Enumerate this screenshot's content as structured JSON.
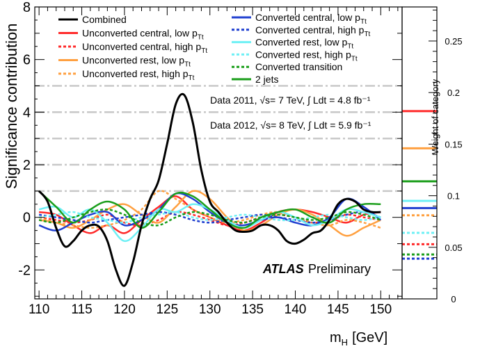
{
  "chart_data": {
    "type": "line",
    "title": "",
    "xlabel": "m",
    "xlabel_sub": "H",
    "xlabel_unit": "[GeV]",
    "ylabel": "Significance contribution",
    "y2label": "Weight of category",
    "xlim": [
      109.5,
      152.5
    ],
    "ylim": [
      -3.1,
      8
    ],
    "y2lim": [
      0,
      0.283
    ],
    "xticks": [
      "110",
      "115",
      "120",
      "125",
      "130",
      "135",
      "140",
      "145",
      "150"
    ],
    "xtick_values": [
      110,
      115,
      120,
      125,
      130,
      135,
      140,
      145,
      150
    ],
    "yticks": [
      "-2",
      "0",
      "2",
      "4",
      "6",
      "8"
    ],
    "ytick_values": [
      -2,
      0,
      2,
      4,
      6,
      8
    ],
    "y2ticks": [
      "0",
      "0.05",
      "0.1",
      "0.15",
      "0.2",
      "0.25"
    ],
    "y2tick_values": [
      0,
      0.05,
      0.1,
      0.15,
      0.2,
      0.25
    ],
    "reference_lines": [
      1,
      2,
      3,
      4,
      5
    ],
    "annotations": {
      "atlas": "ATLAS",
      "preliminary": "Preliminary",
      "data2011": "Data 2011, √s= 7 TeV, ∫ Ldt = 4.8 fb⁻¹",
      "data2012": "Data 2012, √s= 8 TeV, ∫ Ldt = 5.9 fb⁻¹"
    },
    "series": [
      {
        "name": "Combined",
        "color": "#000000",
        "dash": "solid",
        "weight": null,
        "x": [
          110,
          111,
          112,
          113,
          114,
          115,
          116,
          117,
          118,
          119,
          120,
          121,
          122,
          123,
          124,
          125,
          126,
          127,
          128,
          129,
          130,
          131,
          132,
          133,
          134,
          135,
          136,
          137,
          138,
          139,
          140,
          141,
          142,
          143,
          144,
          145,
          146,
          147,
          148,
          149,
          150
        ],
        "y": [
          1.0,
          0.6,
          -0.4,
          -1.1,
          -0.9,
          -0.5,
          -0.3,
          -0.35,
          -0.9,
          -2.0,
          -2.6,
          -1.7,
          -0.3,
          0.7,
          1.4,
          2.8,
          4.3,
          4.65,
          3.6,
          1.8,
          0.6,
          0.2,
          -0.2,
          -0.5,
          -0.55,
          -0.5,
          -0.3,
          -0.3,
          -0.5,
          -0.9,
          -1.0,
          -0.85,
          -0.6,
          -0.5,
          -0.1,
          0.5,
          0.7,
          0.6,
          0.3,
          0.2,
          0.2
        ]
      },
      {
        "name": "Unconverted central, low pTt",
        "color": "#ff2a2a",
        "dash": "solid",
        "weight": 0.182,
        "x": [
          110,
          112,
          114,
          116,
          118,
          120,
          122,
          124,
          126,
          128,
          130,
          132,
          134,
          136,
          138,
          140,
          142,
          144,
          146,
          148,
          150
        ],
        "y": [
          0.2,
          0.1,
          -0.3,
          -0.6,
          -0.3,
          -0.6,
          -0.1,
          0.4,
          0.8,
          0.3,
          0.0,
          -0.3,
          -0.5,
          -0.2,
          0.2,
          0.3,
          0.2,
          0.0,
          -0.2,
          0.1,
          0.2
        ]
      },
      {
        "name": "Unconverted central, high pTt",
        "color": "#ff2a2a",
        "dash": "dotted",
        "weight": 0.053,
        "x": [
          110,
          112,
          114,
          116,
          118,
          120,
          122,
          124,
          126,
          128,
          130,
          132,
          134,
          136,
          138,
          140,
          142,
          144,
          146,
          148,
          150
        ],
        "y": [
          0.0,
          -0.1,
          -0.2,
          -0.1,
          0.1,
          -0.2,
          -0.3,
          -0.1,
          0.2,
          0.1,
          -0.1,
          -0.3,
          -0.2,
          0.0,
          0.1,
          0.0,
          -0.2,
          -0.1,
          0.1,
          0.0,
          -0.1
        ]
      },
      {
        "name": "Unconverted rest, low pTt",
        "color": "#ffa040",
        "dash": "solid",
        "weight": 0.146,
        "x": [
          110,
          112,
          114,
          116,
          118,
          120,
          122,
          124,
          126,
          128,
          130,
          132,
          134,
          136,
          138,
          140,
          142,
          144,
          146,
          148,
          150
        ],
        "y": [
          -0.1,
          -0.2,
          -0.4,
          -0.1,
          0.3,
          0.5,
          0.1,
          -0.2,
          0.4,
          1.0,
          0.7,
          0.0,
          -0.5,
          -0.3,
          0.1,
          0.3,
          0.1,
          -0.3,
          -0.7,
          -0.4,
          -0.1
        ]
      },
      {
        "name": "Unconverted rest, high pTt",
        "color": "#ffa040",
        "dash": "dotted",
        "weight": 0.081,
        "x": [
          110,
          112,
          114,
          116,
          118,
          120,
          122,
          124,
          126,
          128,
          130,
          132,
          134,
          136,
          138,
          140,
          142,
          144,
          146,
          148,
          150
        ],
        "y": [
          0.0,
          -0.2,
          -0.3,
          -0.4,
          -0.3,
          -0.1,
          0.3,
          1.0,
          0.7,
          0.3,
          0.0,
          -0.2,
          -0.1,
          0.1,
          0.2,
          0.0,
          -0.2,
          -0.3,
          -0.1,
          -0.2,
          -0.4
        ]
      },
      {
        "name": "Converted central, low pTt",
        "color": "#1f3fd0",
        "dash": "solid",
        "weight": 0.088,
        "x": [
          110,
          112,
          114,
          116,
          118,
          120,
          122,
          124,
          126,
          128,
          130,
          132,
          134,
          136,
          138,
          140,
          142,
          144,
          146,
          148,
          150
        ],
        "y": [
          -0.3,
          -0.5,
          -0.2,
          0.1,
          0.2,
          -0.3,
          -0.1,
          0.3,
          0.9,
          0.7,
          0.2,
          -0.2,
          -0.3,
          -0.1,
          0.0,
          -0.2,
          -0.3,
          0.0,
          0.7,
          0.4,
          -0.1
        ]
      },
      {
        "name": "Converted central, high pTt",
        "color": "#1f3fd0",
        "dash": "dotted",
        "weight": 0.039,
        "x": [
          110,
          112,
          114,
          116,
          118,
          120,
          122,
          124,
          126,
          128,
          130,
          132,
          134,
          136,
          138,
          140,
          142,
          144,
          146,
          148,
          150
        ],
        "y": [
          0.1,
          0.0,
          -0.1,
          -0.2,
          -0.1,
          0.0,
          0.1,
          0.2,
          0.1,
          -0.1,
          -0.2,
          -0.1,
          0.0,
          0.1,
          0.0,
          -0.1,
          -0.2,
          -0.1,
          0.1,
          0.2,
          0.0
        ]
      },
      {
        "name": "Converted rest, low pTt",
        "color": "#6ef0f5",
        "dash": "solid",
        "weight": 0.095,
        "x": [
          110,
          112,
          114,
          116,
          118,
          120,
          122,
          124,
          126,
          128,
          130,
          132,
          134,
          136,
          138,
          140,
          142,
          144,
          146,
          148,
          150
        ],
        "y": [
          0.3,
          0.4,
          0.0,
          0.3,
          -0.2,
          -0.9,
          -0.4,
          0.3,
          0.2,
          0.5,
          0.3,
          -0.1,
          -0.4,
          -0.1,
          0.2,
          0.0,
          -0.3,
          -0.1,
          0.3,
          0.2,
          0.0
        ]
      },
      {
        "name": "Converted rest, high pTt",
        "color": "#6ef0f5",
        "dash": "dotted",
        "weight": 0.064,
        "x": [
          110,
          112,
          114,
          116,
          118,
          120,
          122,
          124,
          126,
          128,
          130,
          132,
          134,
          136,
          138,
          140,
          142,
          144,
          146,
          148,
          150
        ],
        "y": [
          0.0,
          0.1,
          0.2,
          0.0,
          -0.1,
          -0.2,
          0.0,
          0.1,
          0.2,
          0.0,
          -0.1,
          0.0,
          0.1,
          0.0,
          -0.1,
          -0.1,
          0.0,
          0.1,
          0.0,
          -0.1,
          0.0
        ]
      },
      {
        "name": "Converted transition",
        "color": "#1a9e1a",
        "dash": "dotted",
        "weight": 0.043,
        "x": [
          110,
          112,
          114,
          116,
          118,
          120,
          122,
          124,
          126,
          128,
          130,
          132,
          134,
          136,
          138,
          140,
          142,
          144,
          146,
          148,
          150
        ],
        "y": [
          -0.1,
          -0.2,
          0.0,
          0.2,
          0.3,
          0.1,
          -0.2,
          -0.3,
          0.0,
          0.2,
          0.1,
          -0.1,
          -0.2,
          0.0,
          0.1,
          0.0,
          -0.1,
          0.0,
          0.2,
          0.1,
          -0.1
        ]
      },
      {
        "name": "2 jets",
        "color": "#1a9e1a",
        "dash": "solid",
        "weight": 0.114,
        "x": [
          110,
          112,
          114,
          116,
          118,
          120,
          122,
          124,
          126,
          128,
          130,
          132,
          134,
          136,
          138,
          140,
          142,
          144,
          146,
          148,
          150
        ],
        "y": [
          1.0,
          0.4,
          -0.2,
          0.3,
          0.6,
          0.3,
          -0.4,
          0.2,
          0.9,
          0.8,
          0.3,
          -0.2,
          -0.4,
          0.0,
          0.2,
          0.3,
          0.0,
          -0.2,
          0.3,
          0.5,
          0.5
        ]
      }
    ],
    "legend": {
      "left": [
        {
          "label": "Combined",
          "sub": ""
        },
        {
          "label": "Unconverted central, low p",
          "sub": "Tt"
        },
        {
          "label": "Unconverted central, high p",
          "sub": "Tt"
        },
        {
          "label": "Unconverted rest, low p",
          "sub": "Tt"
        },
        {
          "label": "Unconverted rest, high p",
          "sub": "Tt"
        }
      ],
      "right": [
        {
          "label": "Converted central, low p",
          "sub": "Tt"
        },
        {
          "label": "Converted central, high p",
          "sub": "Tt"
        },
        {
          "label": "Converted rest, low p",
          "sub": "Tt"
        },
        {
          "label": "Converted rest, high p",
          "sub": "Tt"
        },
        {
          "label": "Converted transition",
          "sub": ""
        },
        {
          "label": "2 jets",
          "sub": ""
        }
      ]
    }
  }
}
